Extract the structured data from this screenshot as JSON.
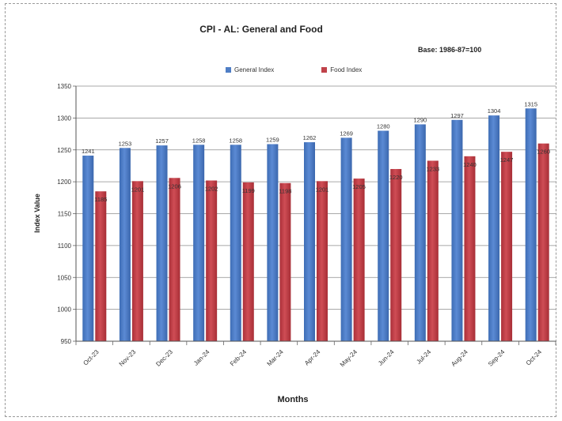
{
  "chart_data": {
    "type": "bar",
    "title": "CPI - AL: General and Food",
    "subtitle": "Base: 1986-87=100",
    "xlabel": "Months",
    "ylabel": "Index Value",
    "ylim": [
      950,
      1350
    ],
    "yticks": [
      950,
      1000,
      1050,
      1100,
      1150,
      1200,
      1250,
      1300,
      1350
    ],
    "grid": true,
    "legend_position": "top-center",
    "categories": [
      "Oct-23",
      "Nov-23",
      "Dec-23",
      "Jan-24",
      "Feb-24",
      "Mar-24",
      "Apr-24",
      "May-24",
      "Jun-24",
      "Jul-24",
      "Aug-24",
      "Sep-24",
      "Oct-24"
    ],
    "series": [
      {
        "name": "General Index",
        "color": "#4f7ec5",
        "values": [
          1241,
          1253,
          1257,
          1258,
          1258,
          1259,
          1262,
          1269,
          1280,
          1290,
          1297,
          1304,
          1315
        ]
      },
      {
        "name": "Food Index",
        "color": "#c0424a",
        "values": [
          1185,
          1201,
          1206,
          1202,
          1199,
          1198,
          1201,
          1205,
          1220,
          1233,
          1240,
          1247,
          1260
        ]
      }
    ]
  }
}
